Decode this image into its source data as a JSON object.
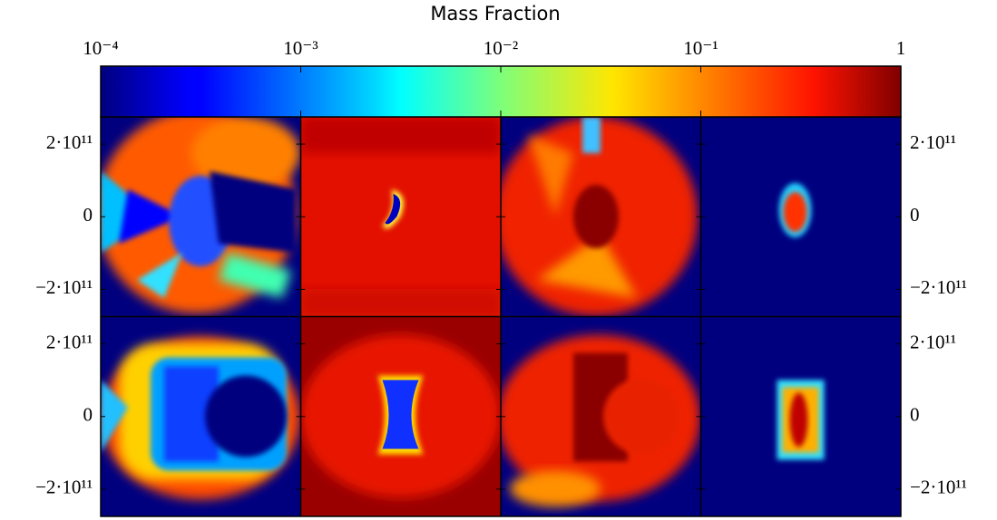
{
  "chart_data": {
    "type": "heatmap",
    "colorbar": {
      "label": "Mass Fraction",
      "log": true,
      "colormap": "jet",
      "lim": [
        0.0001,
        1
      ],
      "ticks": [
        {
          "value": 0.0001,
          "label": "10⁻⁴"
        },
        {
          "value": 0.001,
          "label": "10⁻³"
        },
        {
          "value": 0.01,
          "label": "10⁻²"
        },
        {
          "value": 0.1,
          "label": "10⁻¹"
        },
        1
      ]
    },
    "rows": 2,
    "columns": 4,
    "ylim": [
      -275000000000,
      275000000000
    ],
    "yticks": [
      {
        "value": 200000000000,
        "label": "2·10¹¹"
      },
      0,
      {
        "value": -200000000000,
        "label": "−2·10¹¹"
      }
    ]
  }
}
